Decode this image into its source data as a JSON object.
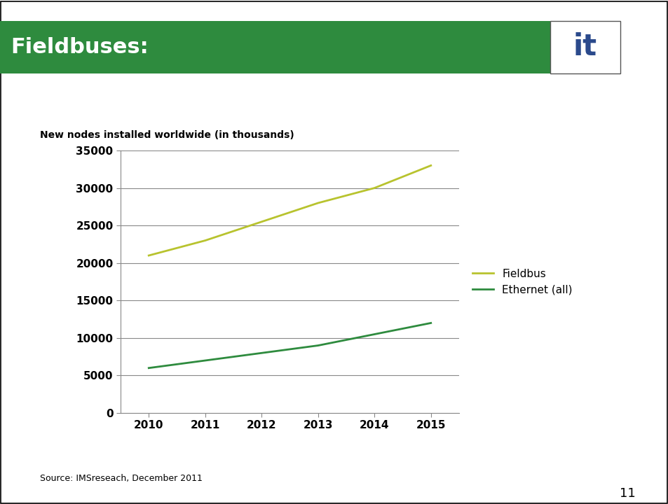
{
  "header": {
    "title": "Fieldbuses:",
    "logo": "it"
  },
  "chart_data": {
    "type": "line",
    "title": "New nodes installed worldwide (in thousands)",
    "categories": [
      "2010",
      "2011",
      "2012",
      "2013",
      "2014",
      "2015"
    ],
    "series": [
      {
        "name": "Fieldbus",
        "color": "#b8c32e",
        "values": [
          21000,
          23000,
          25500,
          28000,
          30000,
          33000
        ]
      },
      {
        "name": "Ethernet (all)",
        "color": "#2e8b3e",
        "values": [
          6000,
          7000,
          8000,
          9000,
          10500,
          12000
        ]
      }
    ],
    "ylim": [
      0,
      35000
    ],
    "yticks": [
      0,
      5000,
      10000,
      15000,
      20000,
      25000,
      30000,
      35000
    ],
    "grid": true,
    "legend": "right"
  },
  "source": "Source: IMSreseach, December 2011",
  "page_number": "11"
}
